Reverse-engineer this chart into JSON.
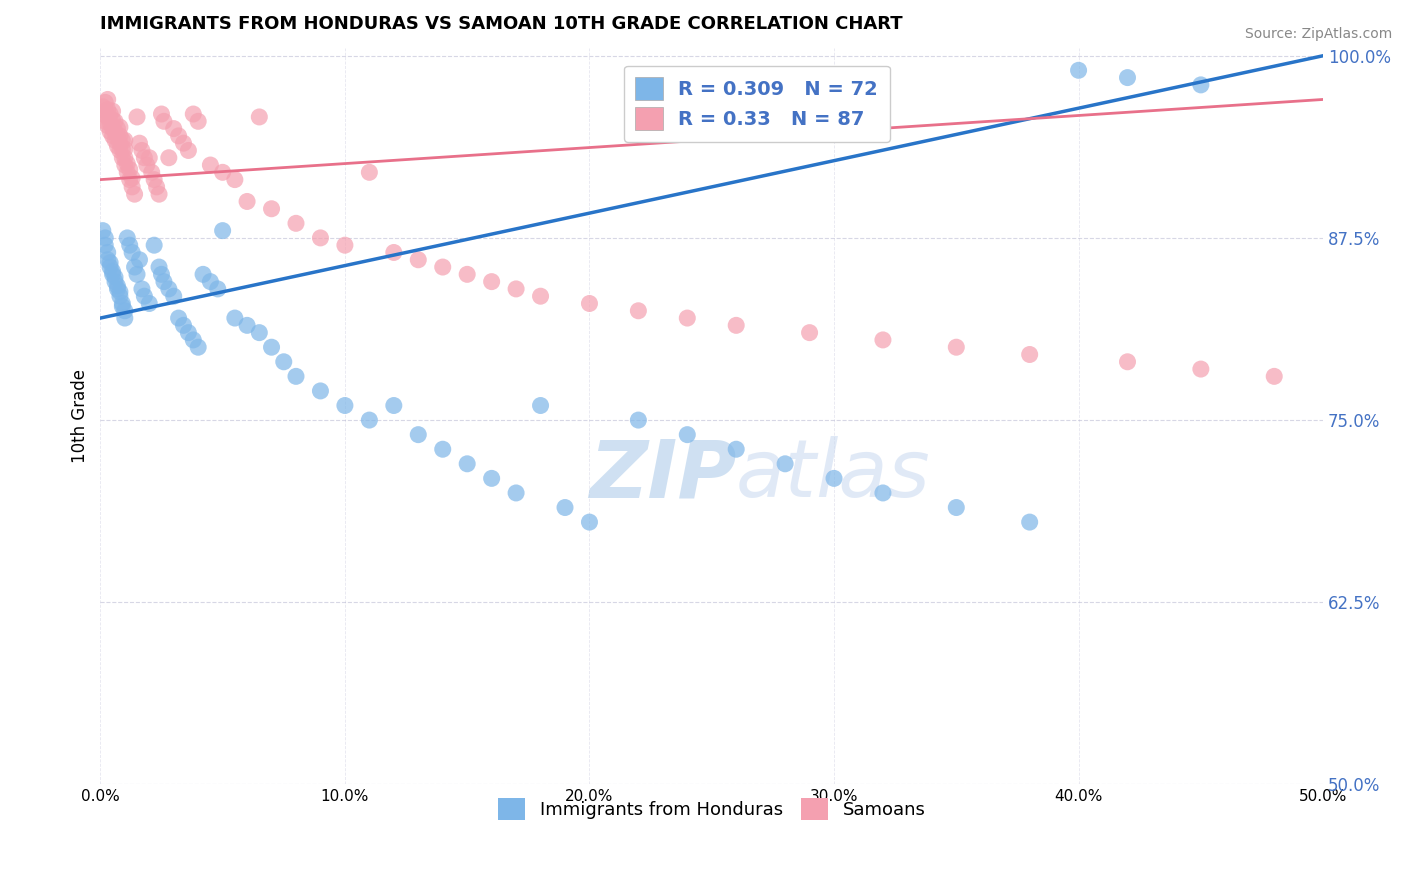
{
  "title": "IMMIGRANTS FROM HONDURAS VS SAMOAN 10TH GRADE CORRELATION CHART",
  "source": "Source: ZipAtlas.com",
  "ylabel": "10th Grade",
  "xmin": 0.0,
  "xmax": 0.5,
  "ymin": 0.5,
  "ymax": 1.005,
  "yticks": [
    0.5,
    0.625,
    0.75,
    0.875,
    1.0
  ],
  "ytick_labels": [
    "50.0%",
    "62.5%",
    "75.0%",
    "87.5%",
    "100.0%"
  ],
  "xticks": [
    0.0,
    0.1,
    0.2,
    0.3,
    0.4,
    0.5
  ],
  "xtick_labels": [
    "0.0%",
    "10.0%",
    "20.0%",
    "30.0%",
    "40.0%",
    "50.0%"
  ],
  "blue_R": 0.309,
  "blue_N": 72,
  "pink_R": 0.33,
  "pink_N": 87,
  "blue_color": "#7EB6E8",
  "pink_color": "#F4A0B0",
  "blue_line_color": "#2874C8",
  "pink_line_color": "#E8708A",
  "legend_blue_label": "Immigrants from Honduras",
  "legend_pink_label": "Samoans",
  "watermark_zip": "ZIP",
  "watermark_atlas": "atlas",
  "blue_scatter_x": [
    0.001,
    0.002,
    0.002,
    0.003,
    0.003,
    0.004,
    0.004,
    0.005,
    0.005,
    0.006,
    0.006,
    0.007,
    0.007,
    0.008,
    0.008,
    0.009,
    0.009,
    0.01,
    0.01,
    0.011,
    0.012,
    0.013,
    0.014,
    0.015,
    0.016,
    0.017,
    0.018,
    0.02,
    0.022,
    0.024,
    0.025,
    0.026,
    0.028,
    0.03,
    0.032,
    0.034,
    0.036,
    0.038,
    0.04,
    0.042,
    0.045,
    0.048,
    0.05,
    0.055,
    0.06,
    0.065,
    0.07,
    0.075,
    0.08,
    0.09,
    0.1,
    0.11,
    0.12,
    0.13,
    0.14,
    0.15,
    0.16,
    0.17,
    0.18,
    0.19,
    0.2,
    0.22,
    0.24,
    0.26,
    0.28,
    0.3,
    0.32,
    0.35,
    0.38,
    0.4,
    0.42,
    0.45
  ],
  "blue_scatter_y": [
    0.88,
    0.87,
    0.875,
    0.86,
    0.865,
    0.855,
    0.858,
    0.85,
    0.852,
    0.845,
    0.848,
    0.84,
    0.842,
    0.838,
    0.835,
    0.83,
    0.828,
    0.825,
    0.82,
    0.875,
    0.87,
    0.865,
    0.855,
    0.85,
    0.86,
    0.84,
    0.835,
    0.83,
    0.87,
    0.855,
    0.85,
    0.845,
    0.84,
    0.835,
    0.82,
    0.815,
    0.81,
    0.805,
    0.8,
    0.85,
    0.845,
    0.84,
    0.88,
    0.82,
    0.815,
    0.81,
    0.8,
    0.79,
    0.78,
    0.77,
    0.76,
    0.75,
    0.76,
    0.74,
    0.73,
    0.72,
    0.71,
    0.7,
    0.76,
    0.69,
    0.68,
    0.75,
    0.74,
    0.73,
    0.72,
    0.71,
    0.7,
    0.69,
    0.68,
    0.99,
    0.985,
    0.98
  ],
  "pink_scatter_x": [
    0.001,
    0.001,
    0.002,
    0.002,
    0.002,
    0.003,
    0.003,
    0.003,
    0.003,
    0.004,
    0.004,
    0.004,
    0.005,
    0.005,
    0.005,
    0.005,
    0.006,
    0.006,
    0.006,
    0.007,
    0.007,
    0.007,
    0.008,
    0.008,
    0.008,
    0.008,
    0.009,
    0.009,
    0.009,
    0.01,
    0.01,
    0.01,
    0.01,
    0.011,
    0.011,
    0.012,
    0.012,
    0.013,
    0.013,
    0.014,
    0.015,
    0.016,
    0.017,
    0.018,
    0.019,
    0.02,
    0.021,
    0.022,
    0.023,
    0.024,
    0.025,
    0.026,
    0.028,
    0.03,
    0.032,
    0.034,
    0.036,
    0.038,
    0.04,
    0.045,
    0.05,
    0.055,
    0.06,
    0.065,
    0.07,
    0.08,
    0.09,
    0.1,
    0.11,
    0.12,
    0.13,
    0.14,
    0.15,
    0.16,
    0.17,
    0.18,
    0.2,
    0.22,
    0.24,
    0.26,
    0.29,
    0.32,
    0.35,
    0.38,
    0.42,
    0.45,
    0.48
  ],
  "pink_scatter_y": [
    0.96,
    0.965,
    0.955,
    0.962,
    0.968,
    0.952,
    0.958,
    0.963,
    0.97,
    0.948,
    0.954,
    0.96,
    0.945,
    0.95,
    0.956,
    0.962,
    0.942,
    0.948,
    0.955,
    0.938,
    0.944,
    0.95,
    0.935,
    0.94,
    0.945,
    0.951,
    0.93,
    0.936,
    0.942,
    0.925,
    0.93,
    0.936,
    0.942,
    0.92,
    0.926,
    0.915,
    0.922,
    0.91,
    0.916,
    0.905,
    0.958,
    0.94,
    0.935,
    0.93,
    0.925,
    0.93,
    0.92,
    0.915,
    0.91,
    0.905,
    0.96,
    0.955,
    0.93,
    0.95,
    0.945,
    0.94,
    0.935,
    0.96,
    0.955,
    0.925,
    0.92,
    0.915,
    0.9,
    0.958,
    0.895,
    0.885,
    0.875,
    0.87,
    0.92,
    0.865,
    0.86,
    0.855,
    0.85,
    0.845,
    0.84,
    0.835,
    0.83,
    0.825,
    0.82,
    0.815,
    0.81,
    0.805,
    0.8,
    0.795,
    0.79,
    0.785,
    0.78
  ],
  "blue_trend_x0": 0.0,
  "blue_trend_x1": 0.5,
  "blue_trend_y0": 0.82,
  "blue_trend_y1": 1.0,
  "pink_trend_x0": 0.0,
  "pink_trend_x1": 0.5,
  "pink_trend_y0": 0.915,
  "pink_trend_y1": 0.97
}
